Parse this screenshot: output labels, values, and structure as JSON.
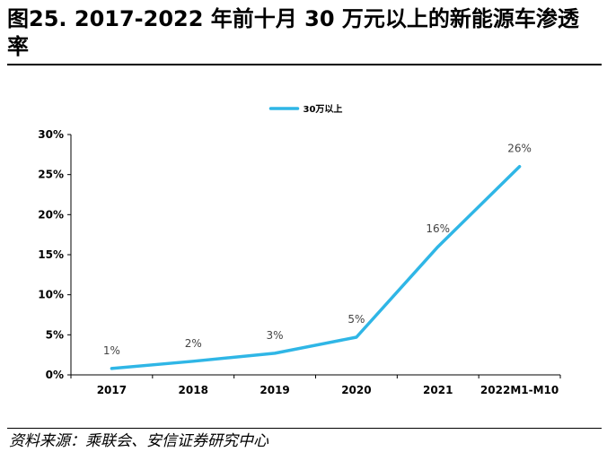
{
  "figure": {
    "title": "图25. 2017-2022 年前十月 30 万元以上的新能源车渗透率",
    "source": "资料来源：乘联会、安信证券研究中心"
  },
  "chart_data": {
    "type": "line",
    "categories": [
      "2017",
      "2018",
      "2019",
      "2020",
      "2021",
      "2022M1-M10"
    ],
    "series": [
      {
        "name": "30万以上",
        "values": [
          0.8,
          1.7,
          2.7,
          4.7,
          16,
          26
        ],
        "color": "#2fb6e6"
      }
    ],
    "data_labels": [
      "1%",
      "2%",
      "3%",
      "5%",
      "16%",
      "26%"
    ],
    "y_ticks": [
      "0%",
      "5%",
      "10%",
      "15%",
      "20%",
      "25%",
      "30%"
    ],
    "ylim": [
      0,
      30
    ],
    "grid": false,
    "legend_position": "top-center",
    "xlabel": "",
    "ylabel": ""
  }
}
